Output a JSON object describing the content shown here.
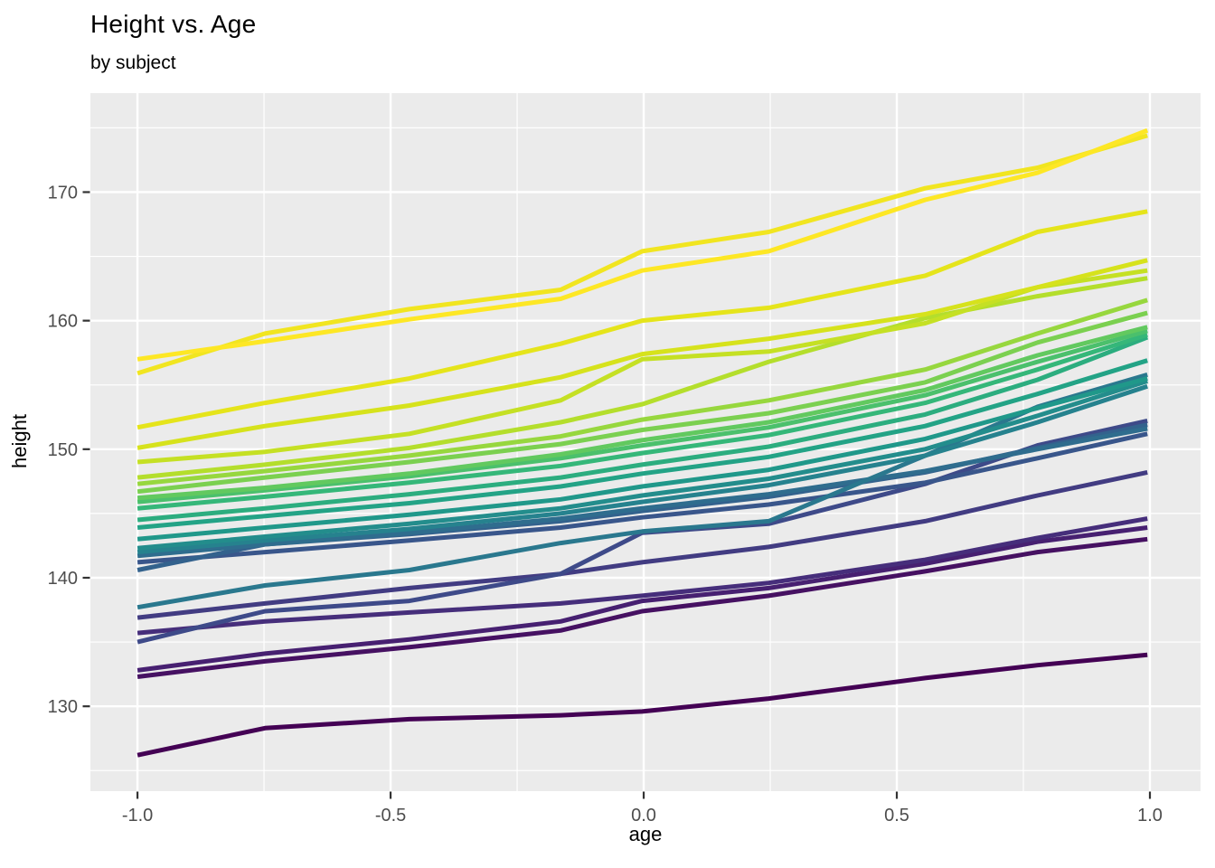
{
  "chart_data": {
    "type": "line",
    "title": "Height vs. Age",
    "subtitle": "by subject",
    "xlabel": "age",
    "ylabel": "height",
    "xlim": [
      -1.093,
      1.1
    ],
    "ylim": [
      123.4,
      177.7
    ],
    "x_ticks": {
      "values": [
        -1.0,
        -0.5,
        0.0,
        0.5,
        1.0
      ],
      "labels": [
        "-1.0",
        "-0.5",
        "0.0",
        "0.5",
        "1.0"
      ]
    },
    "y_ticks": {
      "values": [
        130,
        140,
        150,
        160,
        170
      ],
      "labels": [
        "130",
        "140",
        "150",
        "160",
        "170"
      ]
    },
    "x_minor": [
      -0.75,
      -0.25,
      0.25,
      0.75
    ],
    "y_minor": [
      125,
      135,
      145,
      155,
      165,
      175
    ],
    "grid": "major-and-minor",
    "legend": "none",
    "panel_bg": "#EBEBEB",
    "grid_color": "#FFFFFF",
    "tick_label_color": "#4D4D4D",
    "tick_mark_color": "#333333",
    "x": [
      -1.0,
      -0.748,
      -0.463,
      -0.164,
      -0.003,
      0.247,
      0.556,
      0.778,
      0.995
    ],
    "series": [
      {
        "subject": "1",
        "color": "#440154",
        "heights": [
          126.2,
          128.3,
          129.0,
          129.3,
          129.6,
          130.6,
          132.2,
          133.2,
          134.0
        ]
      },
      {
        "subject": "2",
        "color": "#461162",
        "heights": [
          132.3,
          133.5,
          134.6,
          135.9,
          137.4,
          138.6,
          140.5,
          142.0,
          143.0
        ]
      },
      {
        "subject": "3",
        "color": "#472071",
        "heights": [
          132.8,
          134.1,
          135.2,
          136.6,
          138.2,
          139.2,
          141.1,
          142.8,
          143.9
        ]
      },
      {
        "subject": "4",
        "color": "#462E7B",
        "heights": [
          135.7,
          136.6,
          137.3,
          138.0,
          138.6,
          139.6,
          141.4,
          143.1,
          144.6
        ]
      },
      {
        "subject": "5",
        "color": "#423C82",
        "heights": [
          136.9,
          138.0,
          139.2,
          140.3,
          141.2,
          142.4,
          144.4,
          146.4,
          148.2
        ]
      },
      {
        "subject": "6",
        "color": "#3E4A89",
        "heights": [
          135.0,
          137.4,
          138.2,
          140.3,
          143.5,
          144.2,
          147.3,
          150.3,
          152.2
        ]
      },
      {
        "subject": "7",
        "color": "#39568B",
        "heights": [
          141.2,
          142.0,
          142.9,
          143.9,
          144.7,
          145.7,
          147.4,
          149.3,
          151.2
        ]
      },
      {
        "subject": "8",
        "color": "#33628D",
        "heights": [
          140.6,
          142.6,
          143.4,
          144.4,
          145.2,
          146.3,
          148.2,
          150.1,
          151.9
        ]
      },
      {
        "subject": "9",
        "color": "#2F6D8E",
        "heights": [
          141.7,
          142.6,
          143.5,
          144.6,
          145.4,
          146.5,
          148.3,
          150.0,
          151.6
        ]
      },
      {
        "subject": "10",
        "color": "#2A788E",
        "heights": [
          137.7,
          139.4,
          140.6,
          142.7,
          143.6,
          144.4,
          149.5,
          153.3,
          155.8
        ]
      },
      {
        "subject": "11",
        "color": "#26828E",
        "heights": [
          142.0,
          142.9,
          143.8,
          145.0,
          145.9,
          147.2,
          149.5,
          152.1,
          154.9
        ]
      },
      {
        "subject": "12",
        "color": "#238D8C",
        "heights": [
          142.3,
          143.2,
          144.2,
          145.4,
          146.4,
          147.7,
          150.0,
          152.6,
          155.3
        ]
      },
      {
        "subject": "13",
        "color": "#20988A",
        "heights": [
          143.0,
          143.9,
          144.9,
          146.1,
          147.1,
          148.4,
          150.8,
          153.2,
          155.5
        ]
      },
      {
        "subject": "14",
        "color": "#23A386",
        "heights": [
          143.9,
          144.8,
          145.8,
          147.1,
          148.1,
          149.4,
          151.8,
          154.3,
          156.9
        ]
      },
      {
        "subject": "15",
        "color": "#2CAD7F",
        "heights": [
          144.5,
          145.4,
          146.5,
          147.8,
          148.8,
          150.2,
          152.7,
          155.4,
          158.7
        ]
      },
      {
        "subject": "16",
        "color": "#35B779",
        "heights": [
          145.4,
          146.3,
          147.4,
          148.7,
          149.7,
          151.1,
          153.6,
          156.2,
          158.9
        ]
      },
      {
        "subject": "17",
        "color": "#4BC06C",
        "heights": [
          145.9,
          146.8,
          147.9,
          149.3,
          150.3,
          151.7,
          154.2,
          156.8,
          159.2
        ]
      },
      {
        "subject": "18",
        "color": "#62C95F",
        "heights": [
          146.2,
          147.0,
          148.1,
          149.6,
          150.7,
          152.1,
          154.6,
          157.3,
          159.5
        ]
      },
      {
        "subject": "19",
        "color": "#7BD050",
        "heights": [
          146.7,
          147.8,
          149.0,
          150.4,
          151.5,
          152.8,
          155.2,
          158.3,
          160.6
        ]
      },
      {
        "subject": "20",
        "color": "#97D73E",
        "heights": [
          147.3,
          148.3,
          149.5,
          151.0,
          152.3,
          153.8,
          156.2,
          159.0,
          161.6
        ]
      },
      {
        "subject": "21",
        "color": "#B4DE2C",
        "heights": [
          147.8,
          148.8,
          150.1,
          152.1,
          153.5,
          156.8,
          160.2,
          161.9,
          163.3
        ]
      },
      {
        "subject": "22",
        "color": "#C5E024",
        "heights": [
          149.0,
          149.8,
          151.2,
          153.8,
          157.0,
          157.6,
          159.8,
          162.6,
          163.9
        ]
      },
      {
        "subject": "23",
        "color": "#D6E21C",
        "heights": [
          150.1,
          151.8,
          153.4,
          155.6,
          157.4,
          158.6,
          160.5,
          162.6,
          164.7
        ]
      },
      {
        "subject": "24",
        "color": "#E5E41B",
        "heights": [
          151.7,
          153.6,
          155.5,
          158.2,
          160.0,
          161.0,
          163.5,
          166.9,
          168.5
        ]
      },
      {
        "subject": "25",
        "color": "#F1E520",
        "heights": [
          155.9,
          159.0,
          160.9,
          162.4,
          165.4,
          166.9,
          170.3,
          171.9,
          174.4
        ]
      },
      {
        "subject": "26",
        "color": "#FDE725",
        "heights": [
          157.0,
          158.4,
          160.1,
          161.7,
          163.9,
          165.4,
          169.4,
          171.5,
          174.8
        ]
      }
    ]
  }
}
